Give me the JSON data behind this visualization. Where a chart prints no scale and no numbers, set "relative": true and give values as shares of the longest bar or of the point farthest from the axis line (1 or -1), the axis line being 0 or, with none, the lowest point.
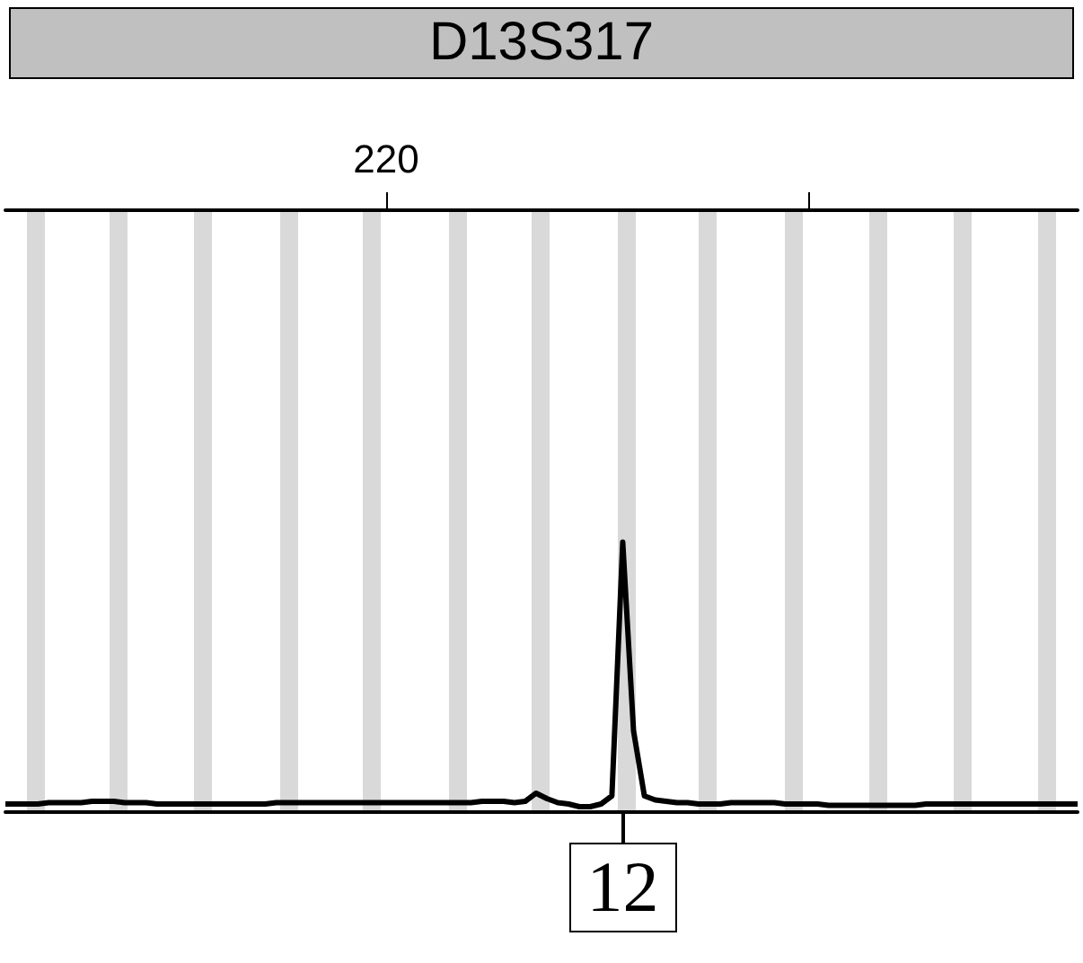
{
  "chart_data": {
    "type": "line",
    "title": "D13S317",
    "relative": true,
    "categories": [
      null,
      null,
      null,
      null,
      null,
      null,
      null,
      null,
      null,
      null,
      null,
      null,
      null,
      null,
      null,
      null,
      null,
      null,
      null,
      null,
      null,
      null,
      null,
      null,
      null,
      null,
      null,
      null,
      null,
      null,
      null,
      null,
      null,
      null,
      null,
      null,
      null,
      null,
      null,
      null,
      null,
      null,
      null,
      null,
      null,
      null,
      null,
      null,
      null,
      null,
      null,
      null,
      null,
      null,
      null,
      null,
      null,
      null,
      null,
      null,
      null,
      null,
      null,
      null,
      null,
      null,
      null,
      null,
      null,
      null,
      null,
      null,
      null,
      null,
      null,
      null,
      null,
      null,
      null,
      null,
      null,
      null,
      null,
      null,
      null,
      null,
      null,
      null,
      null,
      null,
      null,
      null,
      null,
      null,
      null,
      null,
      null,
      null,
      null,
      null
    ],
    "series": [
      {
        "color": "#000000",
        "values": [
          0.03,
          0.03,
          0.03,
          0.03,
          0.035,
          0.035,
          0.035,
          0.035,
          0.04,
          0.04,
          0.04,
          0.035,
          0.035,
          0.035,
          0.03,
          0.03,
          0.03,
          0.03,
          0.03,
          0.03,
          0.03,
          0.03,
          0.03,
          0.03,
          0.03,
          0.035,
          0.035,
          0.035,
          0.035,
          0.035,
          0.035,
          0.035,
          0.035,
          0.035,
          0.035,
          0.035,
          0.035,
          0.035,
          0.035,
          0.035,
          0.035,
          0.035,
          0.035,
          0.035,
          0.04,
          0.04,
          0.04,
          0.035,
          0.04,
          0.07,
          0.05,
          0.035,
          0.03,
          0.02,
          0.02,
          0.03,
          0.06,
          1,
          0.3,
          0.06,
          0.045,
          0.04,
          0.035,
          0.035,
          0.03,
          0.03,
          0.03,
          0.035,
          0.035,
          0.035,
          0.035,
          0.035,
          0.03,
          0.03,
          0.03,
          0.03,
          0.025,
          0.025,
          0.025,
          0.025,
          0.025,
          0.025,
          0.025,
          0.025,
          0.025,
          0.03,
          0.03,
          0.03,
          0.03,
          0.03,
          0.03,
          0.03,
          0.03,
          0.03,
          0.03,
          0.03,
          0.03,
          0.03,
          0.03,
          0.03
        ]
      }
    ],
    "annotations": [
      "220",
      "12"
    ],
    "grid": false,
    "marker": "none",
    "line_style": "solid"
  }
}
